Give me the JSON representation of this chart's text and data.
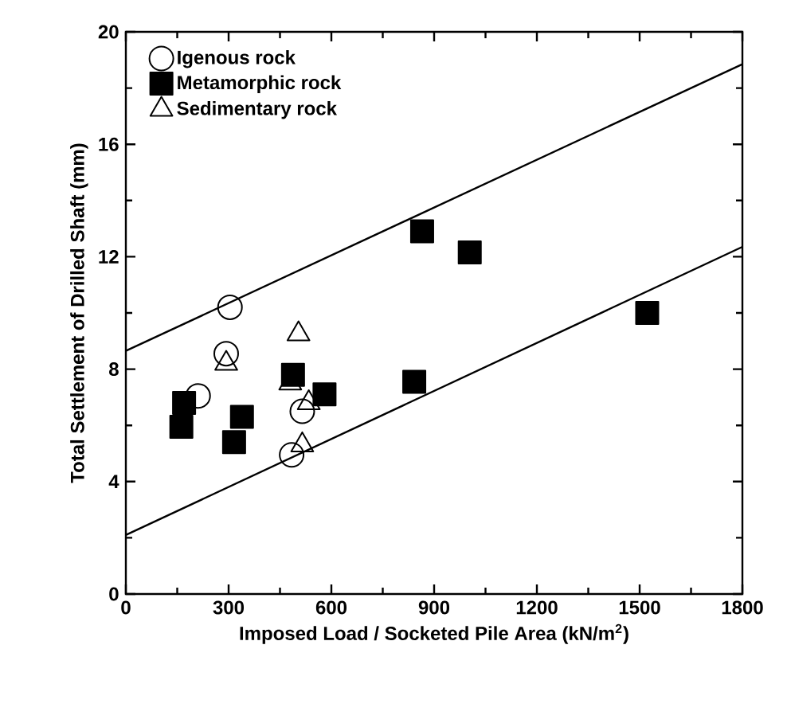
{
  "chart_data": {
    "type": "scatter",
    "xlabel": "Imposed Load / Socketed Pile Area (kN/m$^{2}$)",
    "ylabel": "Total Settlement of Drilled Shaft (mm)",
    "xlim": [
      0,
      1800
    ],
    "ylim": [
      0,
      20
    ],
    "xticks": [
      0,
      300,
      600,
      900,
      1200,
      1500,
      1800
    ],
    "yticks": [
      0,
      4,
      8,
      12,
      16,
      20
    ],
    "legend": "top left",
    "grid": false,
    "series": [
      {
        "name": "Igenous rock",
        "color": "#000000",
        "marker": "circle",
        "x": [
          304,
          293,
          211,
          515,
          484
        ],
        "values": [
          10.2,
          8.55,
          7.05,
          6.5,
          4.95
        ]
      },
      {
        "name": "Metamorphic rock",
        "color": "#000000",
        "marker": "square",
        "x": [
          170,
          162,
          339,
          316,
          488,
          580,
          842,
          1522,
          1004,
          865
        ],
        "values": [
          6.8,
          5.95,
          6.3,
          5.4,
          7.8,
          7.1,
          7.55,
          10.0,
          12.15,
          12.9
        ]
      },
      {
        "name": "Sedimentary rock",
        "color": "#000000",
        "marker": "triangle",
        "x": [
          504,
          293,
          480,
          534,
          515
        ],
        "values": [
          9.25,
          8.2,
          7.5,
          6.8,
          5.3
        ]
      },
      {
        "type": "line",
        "color": "#000000",
        "marker": "none",
        "x": [
          0,
          1800
        ],
        "values": [
          8.65,
          18.85
        ]
      },
      {
        "type": "line",
        "color": "#000000",
        "marker": "none",
        "x": [
          0,
          1800
        ],
        "values": [
          2.1,
          12.35
        ]
      }
    ]
  }
}
